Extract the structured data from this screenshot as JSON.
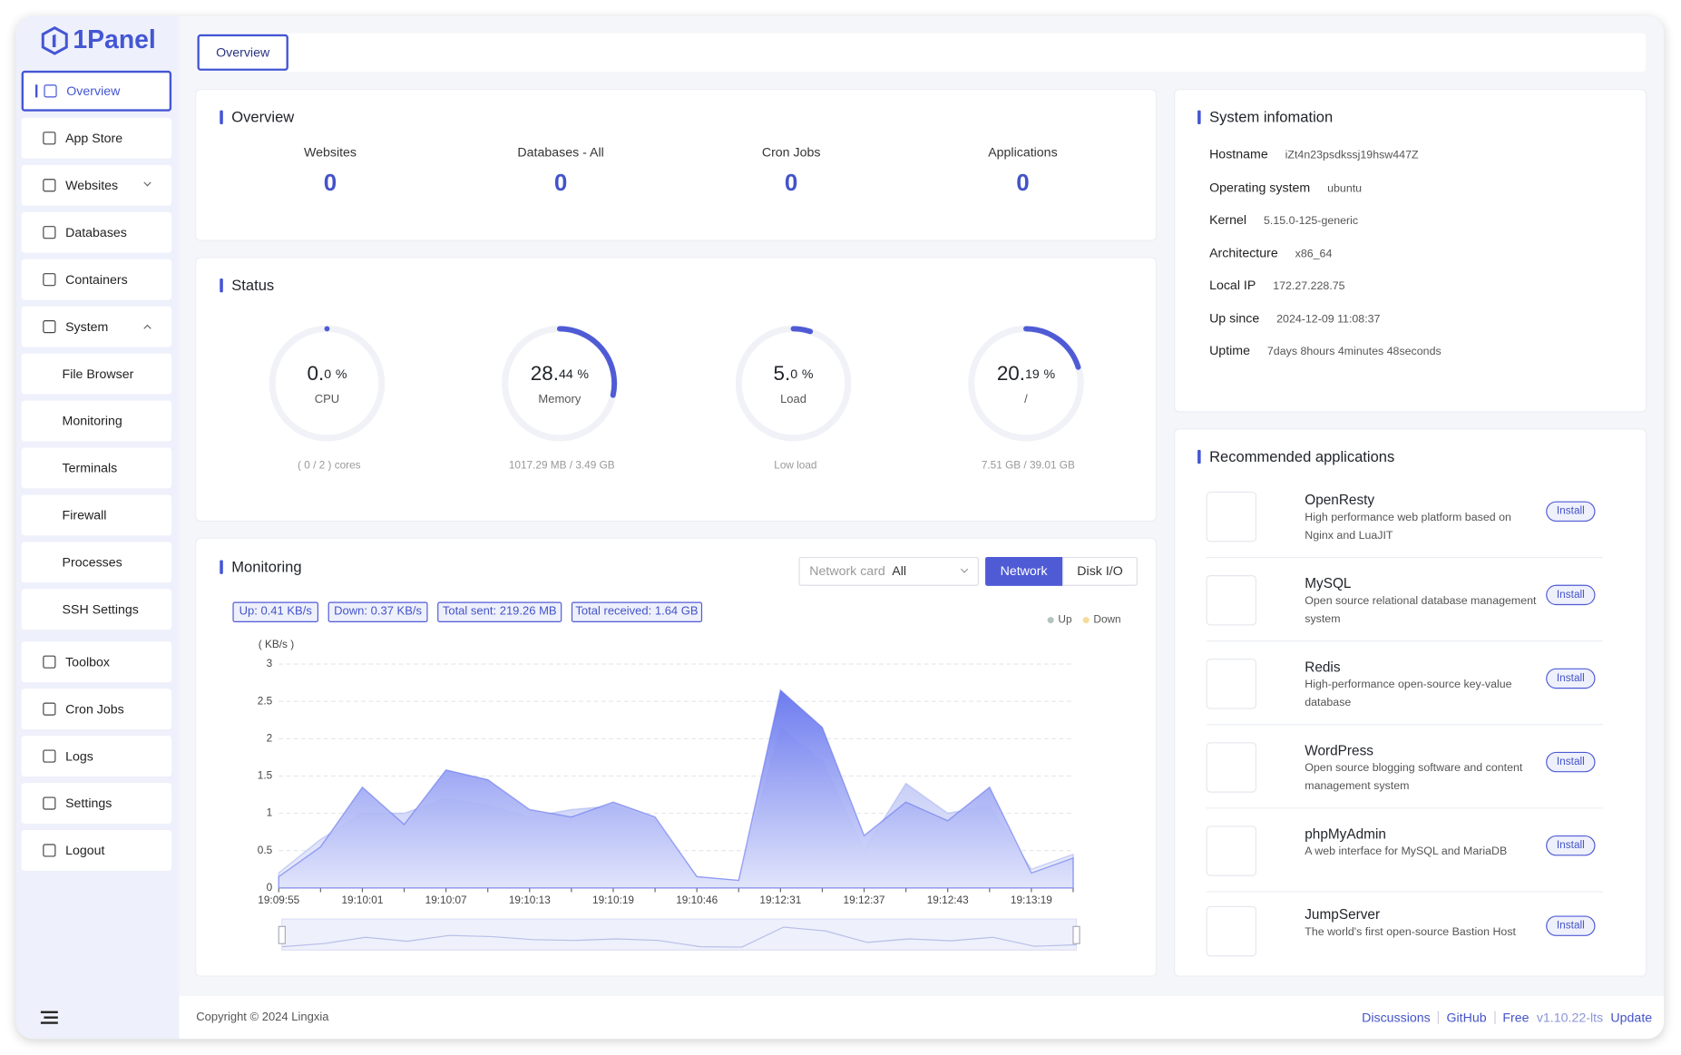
{
  "sidebar": {
    "logo": "1Panel",
    "menu": [
      "Overview",
      "App Store",
      "Websites",
      "Databases",
      "Containers",
      "System",
      "File Browser",
      "Monitoring",
      "Terminals",
      "Firewall",
      "Processes",
      "SSH Settings",
      "Toolbox",
      "Cron Jobs",
      "Logs",
      "Settings",
      "Logout"
    ]
  },
  "tabs": [
    "Overview"
  ],
  "overview": {
    "title": "Overview",
    "stats": [
      {
        "label": "Websites",
        "value": 0
      },
      {
        "label": "Databases - All",
        "value": 0
      },
      {
        "label": "Cron Jobs",
        "value": 0
      },
      {
        "label": "Applications",
        "value": 0
      }
    ]
  },
  "status": {
    "title": "Status",
    "gauges": [
      {
        "value": 0.0,
        "int": "0.",
        "frac": "0",
        "unit": "%",
        "label": "CPU",
        "detail": "( 0 / 2 ) cores"
      },
      {
        "value": 28.44,
        "int": "28.",
        "frac": "44",
        "unit": "%",
        "label": "Memory",
        "detail": "1017.29 MB / 3.49 GB"
      },
      {
        "value": 5.0,
        "int": "5.",
        "frac": "0",
        "unit": "%",
        "label": "Load",
        "detail": "Low load"
      },
      {
        "value": 20.19,
        "int": "20.",
        "frac": "19",
        "unit": "%",
        "label": "/",
        "detail": "7.51 GB / 39.01 GB"
      }
    ]
  },
  "monitoring": {
    "title": "Monitoring",
    "network_card_label": "Network card",
    "network_card_value": "All",
    "buttons": [
      "Network",
      "Disk I/O"
    ],
    "tags": [
      "Up: 0.41 KB/s",
      "Down: 0.37 KB/s",
      "Total sent: 219.26 MB",
      "Total received: 1.64 GB"
    ],
    "chart": {
      "type": "area",
      "y_label": "( KB/s )",
      "categories": [
        "19:09:55",
        null,
        "19:10:01",
        null,
        "19:10:07",
        null,
        "19:10:13",
        null,
        "19:10:19",
        null,
        "19:10:46",
        null,
        "19:12:31",
        null,
        "19:12:37",
        null,
        "19:12:43",
        null,
        "19:13:19",
        null
      ],
      "series": [
        {
          "name": "Up",
          "color": "#b5c3bd",
          "fill": "#6574ee",
          "values": [
            0.15,
            0.55,
            1.35,
            0.85,
            1.58,
            1.45,
            1.05,
            0.95,
            1.15,
            0.95,
            0.15,
            0.1,
            2.65,
            2.15,
            0.7,
            1.15,
            0.9,
            1.35,
            0.2,
            0.4
          ]
        },
        {
          "name": "Down",
          "color": "#f6dc9a",
          "fill": "#aab5f2",
          "values": [
            0.2,
            0.65,
            1.0,
            1.0,
            1.2,
            1.1,
            0.95,
            1.05,
            1.1,
            0.9,
            0.15,
            0.1,
            2.15,
            1.7,
            0.5,
            1.4,
            1.0,
            1.1,
            0.25,
            0.45
          ]
        }
      ],
      "ylim": [
        0,
        3
      ],
      "yticks": [
        0,
        0.5,
        1,
        1.5,
        2,
        2.5,
        3
      ],
      "grid": true,
      "legend": "top-right"
    }
  },
  "system_info": {
    "title": "System infomation",
    "rows": [
      {
        "label": "Hostname",
        "value": "iZt4n23psdkssj19hsw447Z"
      },
      {
        "label": "Operating system",
        "value": "ubuntu"
      },
      {
        "label": "Kernel",
        "value": "5.15.0-125-generic"
      },
      {
        "label": "Architecture",
        "value": "x86_64"
      },
      {
        "label": "Local IP",
        "value": "172.27.228.75"
      },
      {
        "label": "Up since",
        "value": "2024-12-09 11:08:37"
      },
      {
        "label": "Uptime",
        "value": "7days 8hours 4minutes 48seconds"
      }
    ]
  },
  "recommended": {
    "title": "Recommended applications",
    "apps": [
      {
        "name": "OpenResty",
        "description": "High performance web platform based on Nginx and LuaJIT",
        "action": "Install"
      },
      {
        "name": "MySQL",
        "description": "Open source relational database management system",
        "action": "Install"
      },
      {
        "name": "Redis",
        "description": "High-performance open-source key-value database",
        "action": "Install"
      },
      {
        "name": "WordPress",
        "description": "Open source blogging software and content management system",
        "action": "Install"
      },
      {
        "name": "phpMyAdmin",
        "description": "A web interface for MySQL and MariaDB",
        "action": "Install"
      },
      {
        "name": "JumpServer",
        "description": "The world's first open-source Bastion Host",
        "action": "Install"
      }
    ]
  },
  "footer": {
    "copyright": "Copyright © 2024 Lingxia",
    "links": [
      "Discussions",
      "GitHub"
    ],
    "edition": "Free",
    "version": "v1.10.22-lts",
    "update": "Update"
  }
}
